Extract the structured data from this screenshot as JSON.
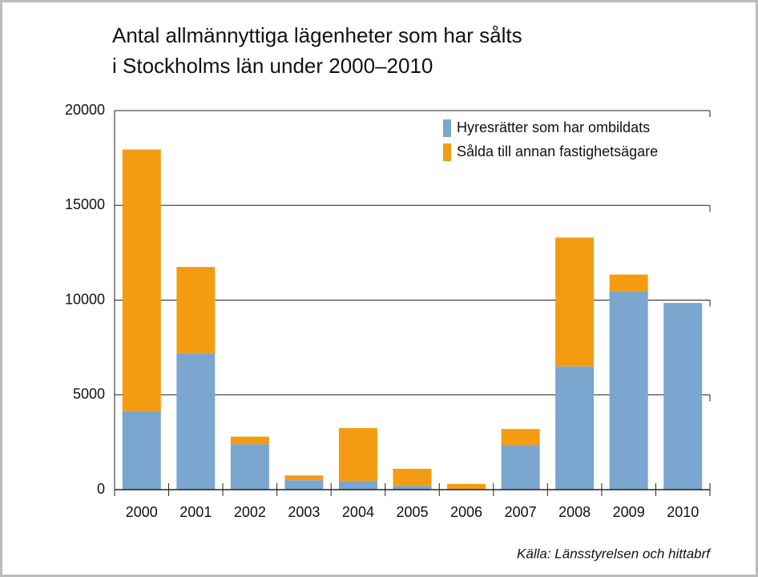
{
  "chart_data": {
    "type": "stacked_bar",
    "title": [
      "Antal allmännyttiga lägenheter som har sålts",
      "i Stockholms län under 2000–2010"
    ],
    "categories": [
      "2000",
      "2001",
      "2002",
      "2003",
      "2004",
      "2005",
      "2006",
      "2007",
      "2008",
      "2009",
      "2010"
    ],
    "series": [
      {
        "name": "Hyresrätter som har ombildats",
        "color": "#7aa6cf",
        "values": [
          4150,
          7200,
          2400,
          500,
          450,
          200,
          0,
          2350,
          6500,
          10450,
          9850
        ]
      },
      {
        "name": "Sålda till annan fastighetsägare",
        "color": "#f39c12",
        "values": [
          13800,
          4550,
          400,
          250,
          2800,
          900,
          300,
          850,
          6800,
          900,
          0
        ]
      }
    ],
    "ylim": [
      0,
      20000
    ],
    "yticks": [
      0,
      5000,
      10000,
      15000,
      20000
    ],
    "grid": true,
    "legend": "top-right",
    "source": "Källa: Länsstyrelsen och hittabrf"
  }
}
